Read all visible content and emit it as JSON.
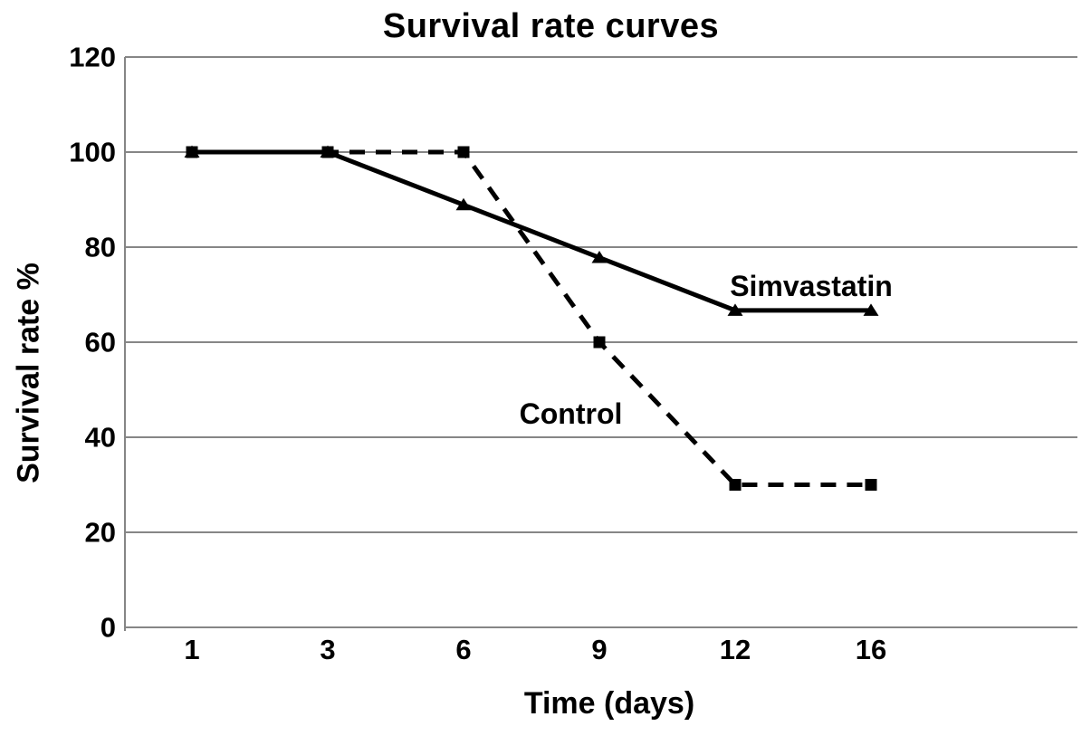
{
  "chart_data": {
    "type": "line",
    "title": "Survival rate curves",
    "xlabel": "Time (days)",
    "ylabel": "Survival rate %",
    "x_tick_labels": [
      "1",
      "3",
      "6",
      "9",
      "12",
      "16"
    ],
    "x_values_days": [
      1,
      3,
      6,
      9,
      12,
      16
    ],
    "y_ticks": [
      0,
      20,
      40,
      60,
      80,
      100,
      120
    ],
    "ylim": [
      0,
      120
    ],
    "grid": "horizontal-gray-lines",
    "legend_position": "inline-annotations",
    "series": [
      {
        "name": "Simvastatin",
        "line_style": "solid",
        "marker": "triangle",
        "color": "#000000",
        "values": [
          100,
          100,
          88.9,
          77.8,
          66.7,
          66.7
        ]
      },
      {
        "name": "Control",
        "line_style": "dashed",
        "marker": "square",
        "color": "#000000",
        "values": [
          100,
          100,
          100,
          60,
          30,
          30
        ]
      }
    ],
    "annotations": [
      {
        "text": "Simvastatin",
        "xi": 4.56,
        "y": 71.8
      },
      {
        "text": "Control",
        "xi": 2.79,
        "y": 45.0
      }
    ],
    "colors": {
      "grid": "#868686",
      "axis": "#868686",
      "series": "#000000",
      "text": "#000000",
      "background": "#ffffff"
    }
  }
}
